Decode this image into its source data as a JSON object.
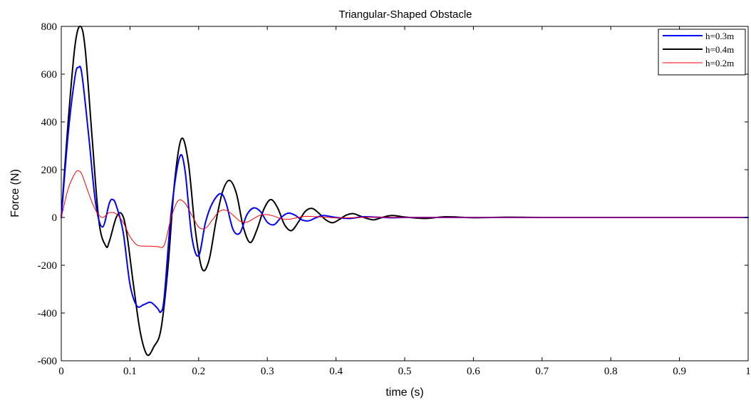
{
  "chart_data": {
    "type": "line",
    "title": "Triangular-Shaped Obstacle",
    "xlabel": "time (s)",
    "ylabel": "Force (N)",
    "xlim": [
      0,
      1
    ],
    "ylim": [
      -600,
      800
    ],
    "xticks": [
      0,
      0.1,
      0.2,
      0.3,
      0.4,
      0.5,
      0.6,
      0.7,
      0.8,
      0.9,
      1
    ],
    "xtick_labels": [
      "0",
      "0.1",
      "0.2",
      "0.3",
      "0.4",
      "0.5",
      "0.6",
      "0.7",
      "0.8",
      "0.9",
      "1"
    ],
    "yticks": [
      -600,
      -400,
      -200,
      0,
      200,
      400,
      600,
      800
    ],
    "ytick_labels": [
      "-600",
      "-400",
      "-200",
      "0",
      "200",
      "400",
      "600",
      "800"
    ],
    "grid": false,
    "legend_position": "top-right",
    "series": [
      {
        "name": "h=0.3m",
        "color": "#0000ff",
        "x": [
          0,
          0.01,
          0.02,
          0.025,
          0.03,
          0.04,
          0.05,
          0.06,
          0.07,
          0.075,
          0.08,
          0.09,
          0.1,
          0.11,
          0.12,
          0.13,
          0.14,
          0.145,
          0.15,
          0.16,
          0.172,
          0.18,
          0.19,
          0.2,
          0.21,
          0.22,
          0.232,
          0.24,
          0.25,
          0.26,
          0.27,
          0.28,
          0.29,
          0.3,
          0.31,
          0.32,
          0.33,
          0.34,
          0.35,
          0.36,
          0.37,
          0.38,
          0.39,
          0.4,
          0.42,
          0.44,
          0.46,
          0.48,
          0.5,
          0.55,
          0.6,
          0.7,
          0.8,
          0.9,
          1
        ],
        "y": [
          0,
          350,
          590,
          628,
          600,
          340,
          60,
          -40,
          60,
          75,
          50,
          -60,
          -280,
          -370,
          -365,
          -355,
          -380,
          -395,
          -330,
          20,
          250,
          200,
          -80,
          -160,
          -20,
          60,
          100,
          60,
          -50,
          -65,
          10,
          40,
          25,
          -20,
          -30,
          0,
          18,
          10,
          -10,
          -14,
          -2,
          8,
          5,
          0,
          -4,
          3,
          1,
          -1,
          0,
          0,
          0,
          0,
          0,
          0,
          0
        ]
      },
      {
        "name": "h=0.4m",
        "color": "#000000",
        "x": [
          0,
          0.01,
          0.02,
          0.028,
          0.035,
          0.045,
          0.055,
          0.065,
          0.07,
          0.08,
          0.088,
          0.095,
          0.105,
          0.115,
          0.125,
          0.135,
          0.145,
          0.155,
          0.165,
          0.175,
          0.185,
          0.195,
          0.205,
          0.215,
          0.225,
          0.235,
          0.245,
          0.255,
          0.265,
          0.275,
          0.285,
          0.295,
          0.305,
          0.315,
          0.325,
          0.335,
          0.345,
          0.355,
          0.365,
          0.375,
          0.385,
          0.395,
          0.405,
          0.415,
          0.425,
          0.435,
          0.445,
          0.455,
          0.465,
          0.475,
          0.485,
          0.5,
          0.53,
          0.56,
          0.6,
          0.65,
          0.7,
          0.8,
          0.9,
          1
        ],
        "y": [
          0,
          400,
          720,
          800,
          700,
          330,
          -20,
          -120,
          -100,
          0,
          15,
          -60,
          -280,
          -480,
          -575,
          -540,
          -470,
          -220,
          150,
          330,
          230,
          -50,
          -215,
          -180,
          -20,
          110,
          155,
          100,
          -40,
          -105,
          -50,
          35,
          75,
          40,
          -30,
          -55,
          -20,
          25,
          38,
          18,
          -10,
          -22,
          -8,
          10,
          16,
          6,
          -4,
          -10,
          -2,
          6,
          8,
          2,
          -4,
          3,
          -1,
          1,
          0,
          0,
          0,
          0
        ]
      },
      {
        "name": "h=0.2m",
        "color": "#ff0000",
        "x": [
          0,
          0.01,
          0.02,
          0.025,
          0.03,
          0.04,
          0.05,
          0.06,
          0.07,
          0.08,
          0.09,
          0.1,
          0.11,
          0.12,
          0.13,
          0.14,
          0.15,
          0.16,
          0.17,
          0.18,
          0.19,
          0.2,
          0.21,
          0.22,
          0.23,
          0.24,
          0.25,
          0.26,
          0.27,
          0.28,
          0.29,
          0.3,
          0.31,
          0.32,
          0.33,
          0.34,
          0.35,
          0.36,
          0.38,
          0.4,
          0.42,
          0.45,
          0.5,
          0.6,
          0.7,
          0.8,
          0.9,
          1
        ],
        "y": [
          0,
          120,
          185,
          195,
          180,
          100,
          30,
          0,
          20,
          15,
          -20,
          -80,
          -115,
          -120,
          -120,
          -122,
          -115,
          0,
          70,
          60,
          10,
          -40,
          -45,
          -10,
          25,
          30,
          10,
          -15,
          -20,
          -5,
          10,
          12,
          5,
          -5,
          -8,
          -3,
          3,
          5,
          2,
          -2,
          -1,
          1,
          0,
          0,
          0,
          0,
          0,
          0
        ]
      }
    ]
  }
}
